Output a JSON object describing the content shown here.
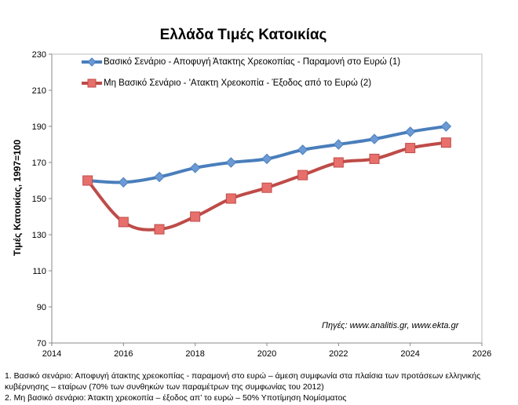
{
  "chart_data": {
    "type": "line",
    "title": "Ελλάδα Τιμές Κατοικίας",
    "xlabel": "",
    "ylabel": "Τιμές Κατοικίας, 1997=100",
    "xlim": [
      2014,
      2026
    ],
    "ylim": [
      70,
      230
    ],
    "xticks": [
      2014,
      2016,
      2018,
      2020,
      2022,
      2024,
      2026
    ],
    "yticks": [
      70,
      90,
      110,
      130,
      150,
      170,
      190,
      210,
      230
    ],
    "grid": false,
    "legend_position": "top-left",
    "x": [
      2015,
      2016,
      2017,
      2018,
      2019,
      2020,
      2021,
      2022,
      2023,
      2024,
      2025
    ],
    "series": [
      {
        "name": "Βασικό Σενάριο - Αποφυγή Άτακτης Χρεοκοπίας - Παραμονή στο Ευρώ (1)",
        "color": "#4a7ebb",
        "marker": "diamond",
        "values": [
          160,
          159,
          162,
          167,
          170,
          172,
          177,
          180,
          183,
          187,
          190
        ]
      },
      {
        "name": "Μη Βασικό Σενάριο - 'Ατακτη Χρεοκοπία - Έξοδος από το Ευρώ (2)",
        "color": "#be4b48",
        "marker": "square",
        "values": [
          160,
          137,
          133,
          140,
          150,
          156,
          163,
          170,
          172,
          178,
          181
        ]
      }
    ],
    "annotations": [
      "Πηγές: www.analitis.gr,  www.ekta.gr"
    ]
  },
  "footnotes": [
    "1. Βασικό σενάριο: Αποφυγή άτακτης χρεοκοπίας - παραμονή στο ευρώ – άμεση συμφωνία  στα πλαίσια των προτάσεων ελληνικής κυβέρνησης – εταίρων (70% των συνθηκών  των παραμέτρων της συμφωνίας του 2012)",
    "2. Μη βασικό  σενάριο: Άτακτη χρεοκοπία – έξοδος απ’ το ευρώ – 50% Υποτίμηση Νομίσματος"
  ]
}
